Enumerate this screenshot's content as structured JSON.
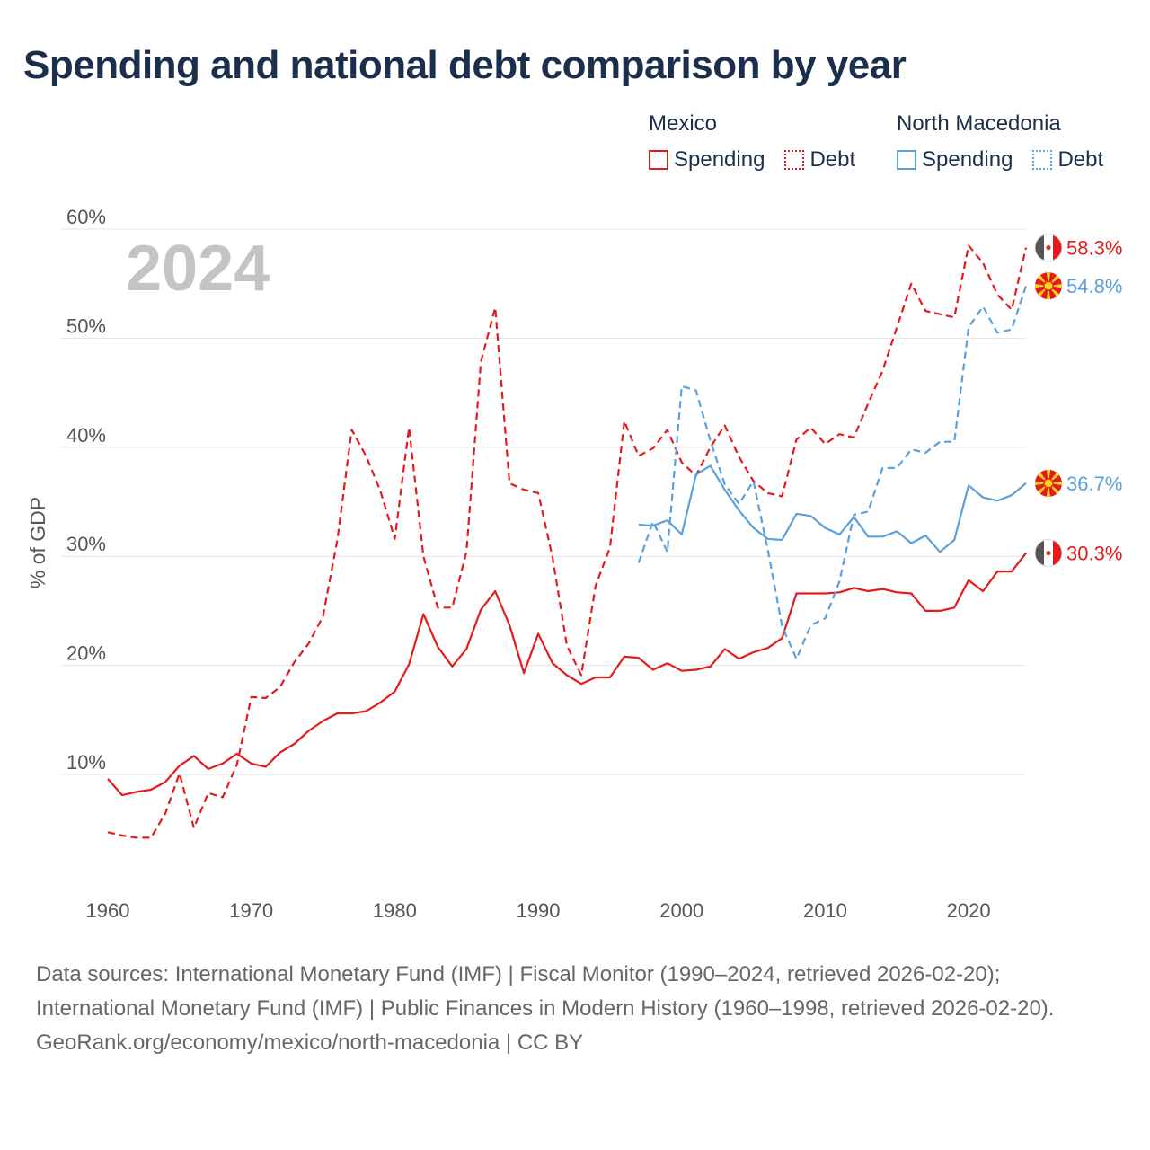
{
  "title": "Spending and national debt comparison by year",
  "year_badge": "2024",
  "legend": {
    "groups": [
      {
        "name": "Mexico",
        "items": [
          {
            "label": "Spending",
            "style": "solid"
          },
          {
            "label": "Debt",
            "style": "dotted"
          }
        ],
        "color": "#e41a1c"
      },
      {
        "name": "North Macedonia",
        "items": [
          {
            "label": "Spending",
            "style": "solid"
          },
          {
            "label": "Debt",
            "style": "dotted"
          }
        ],
        "color": "#5aa0dc"
      }
    ]
  },
  "footer": {
    "line1": "Data sources: International Monetary Fund (IMF) | Fiscal Monitor (1990–2024, retrieved 2026-02-20); International Monetary Fund (IMF) | Public Finances in Modern History (1960–1998, retrieved 2026-02-20).",
    "line2": "GeoRank.org/economy/mexico/north-macedonia | CC BY"
  },
  "chart_data": {
    "type": "line",
    "title": "Spending and national debt comparison by year",
    "xlabel": "",
    "ylabel": "% of GDP",
    "xlim": [
      1960,
      2024
    ],
    "ylim": [
      1,
      61
    ],
    "x_ticks": [
      1960,
      1970,
      1980,
      1990,
      2000,
      2010,
      2020
    ],
    "y_ticks": [
      10,
      20,
      30,
      40,
      50,
      60
    ],
    "y_tick_labels": [
      "10%",
      "20%",
      "30%",
      "40%",
      "50%",
      "60%"
    ],
    "grid": true,
    "series": [
      {
        "name": "Mexico Spending",
        "country": "Mexico",
        "metric": "Spending",
        "style": "solid",
        "color": "#e41a1c",
        "end_label": "30.3%",
        "x": [
          1960,
          1961,
          1962,
          1963,
          1964,
          1965,
          1966,
          1967,
          1968,
          1969,
          1970,
          1971,
          1972,
          1973,
          1974,
          1975,
          1976,
          1977,
          1978,
          1979,
          1980,
          1981,
          1982,
          1983,
          1984,
          1985,
          1986,
          1987,
          1988,
          1989,
          1990,
          1991,
          1992,
          1993,
          1994,
          1995,
          1996,
          1997,
          1998,
          1999,
          2000,
          2001,
          2002,
          2003,
          2004,
          2005,
          2006,
          2007,
          2008,
          2009,
          2010,
          2011,
          2012,
          2013,
          2014,
          2015,
          2016,
          2017,
          2018,
          2019,
          2020,
          2021,
          2022,
          2023,
          2024
        ],
        "values": [
          9.6,
          8.1,
          8.4,
          8.6,
          9.3,
          10.8,
          11.7,
          10.5,
          11.0,
          11.9,
          11.0,
          10.7,
          12.0,
          12.8,
          14.0,
          14.9,
          15.6,
          15.6,
          15.8,
          16.6,
          17.6,
          20.1,
          24.7,
          21.7,
          19.9,
          21.5,
          25.1,
          26.8,
          23.7,
          19.3,
          22.9,
          20.2,
          19.1,
          18.3,
          18.9,
          18.9,
          20.8,
          20.7,
          19.6,
          20.2,
          19.5,
          19.6,
          19.9,
          21.5,
          20.6,
          21.2,
          21.6,
          22.5,
          26.6,
          26.6,
          26.6,
          26.7,
          27.1,
          26.8,
          27.0,
          26.7,
          26.6,
          25.0,
          25.0,
          25.3,
          27.8,
          26.8,
          28.6,
          28.6,
          30.3
        ]
      },
      {
        "name": "Mexico Debt",
        "country": "Mexico",
        "metric": "Debt",
        "style": "dashed",
        "color": "#e41a1c",
        "end_label": "58.3%",
        "x": [
          1960,
          1961,
          1962,
          1963,
          1964,
          1965,
          1966,
          1967,
          1968,
          1969,
          1970,
          1971,
          1972,
          1973,
          1974,
          1975,
          1976,
          1977,
          1978,
          1979,
          1980,
          1981,
          1982,
          1983,
          1984,
          1985,
          1986,
          1987,
          1988,
          1989,
          1990,
          1991,
          1992,
          1993,
          1994,
          1995,
          1996,
          1997,
          1998,
          1999,
          2000,
          2001,
          2002,
          2003,
          2004,
          2005,
          2006,
          2007,
          2008,
          2009,
          2010,
          2011,
          2012,
          2013,
          2014,
          2015,
          2016,
          2017,
          2018,
          2019,
          2020,
          2021,
          2022,
          2023,
          2024
        ],
        "values": [
          4.7,
          4.4,
          4.2,
          4.2,
          6.4,
          10.1,
          5.1,
          8.3,
          7.9,
          10.9,
          17.1,
          17.0,
          18.0,
          20.3,
          22.0,
          24.5,
          31.5,
          41.6,
          39.2,
          36.0,
          31.6,
          41.8,
          30.0,
          25.3,
          25.3,
          30.4,
          47.8,
          52.8,
          36.7,
          36.1,
          35.8,
          29.9,
          21.8,
          19.1,
          27.3,
          30.8,
          42.4,
          39.2,
          39.9,
          41.6,
          38.6,
          37.4,
          40.0,
          42.0,
          39.1,
          36.9,
          35.8,
          35.5,
          40.7,
          41.8,
          40.3,
          41.2,
          40.9,
          44.0,
          47.0,
          51.0,
          55.0,
          52.5,
          52.2,
          51.9,
          58.5,
          56.9,
          54.0,
          52.6,
          58.3
        ]
      },
      {
        "name": "North Macedonia Spending",
        "country": "North Macedonia",
        "metric": "Spending",
        "style": "solid",
        "color": "#5aa0dc",
        "end_label": "36.7%",
        "x": [
          1997,
          1998,
          1999,
          2000,
          2001,
          2002,
          2003,
          2004,
          2005,
          2006,
          2007,
          2008,
          2009,
          2010,
          2011,
          2012,
          2013,
          2014,
          2015,
          2016,
          2017,
          2018,
          2019,
          2020,
          2021,
          2022,
          2023,
          2024
        ],
        "values": [
          32.9,
          32.8,
          33.3,
          32.0,
          37.5,
          38.3,
          36.1,
          34.2,
          32.6,
          31.6,
          31.5,
          33.9,
          33.7,
          32.6,
          32.0,
          33.6,
          31.8,
          31.8,
          32.3,
          31.2,
          31.9,
          30.4,
          31.5,
          36.5,
          35.4,
          35.1,
          35.6,
          36.7
        ]
      },
      {
        "name": "North Macedonia Debt",
        "country": "North Macedonia",
        "metric": "Debt",
        "style": "dashed",
        "color": "#5aa0dc",
        "end_label": "54.8%",
        "x": [
          1997,
          1998,
          1999,
          2000,
          2001,
          2002,
          2003,
          2004,
          2005,
          2006,
          2007,
          2008,
          2009,
          2010,
          2011,
          2012,
          2013,
          2014,
          2015,
          2016,
          2017,
          2018,
          2019,
          2020,
          2021,
          2022,
          2023,
          2024
        ],
        "values": [
          29.4,
          33.2,
          30.4,
          45.6,
          45.2,
          40.6,
          36.6,
          34.8,
          36.9,
          30.6,
          23.6,
          20.6,
          23.7,
          24.3,
          27.7,
          33.8,
          34.1,
          38.1,
          38.1,
          39.8,
          39.5,
          40.5,
          40.5,
          51.0,
          52.9,
          50.5,
          50.8,
          54.8
        ]
      }
    ]
  }
}
